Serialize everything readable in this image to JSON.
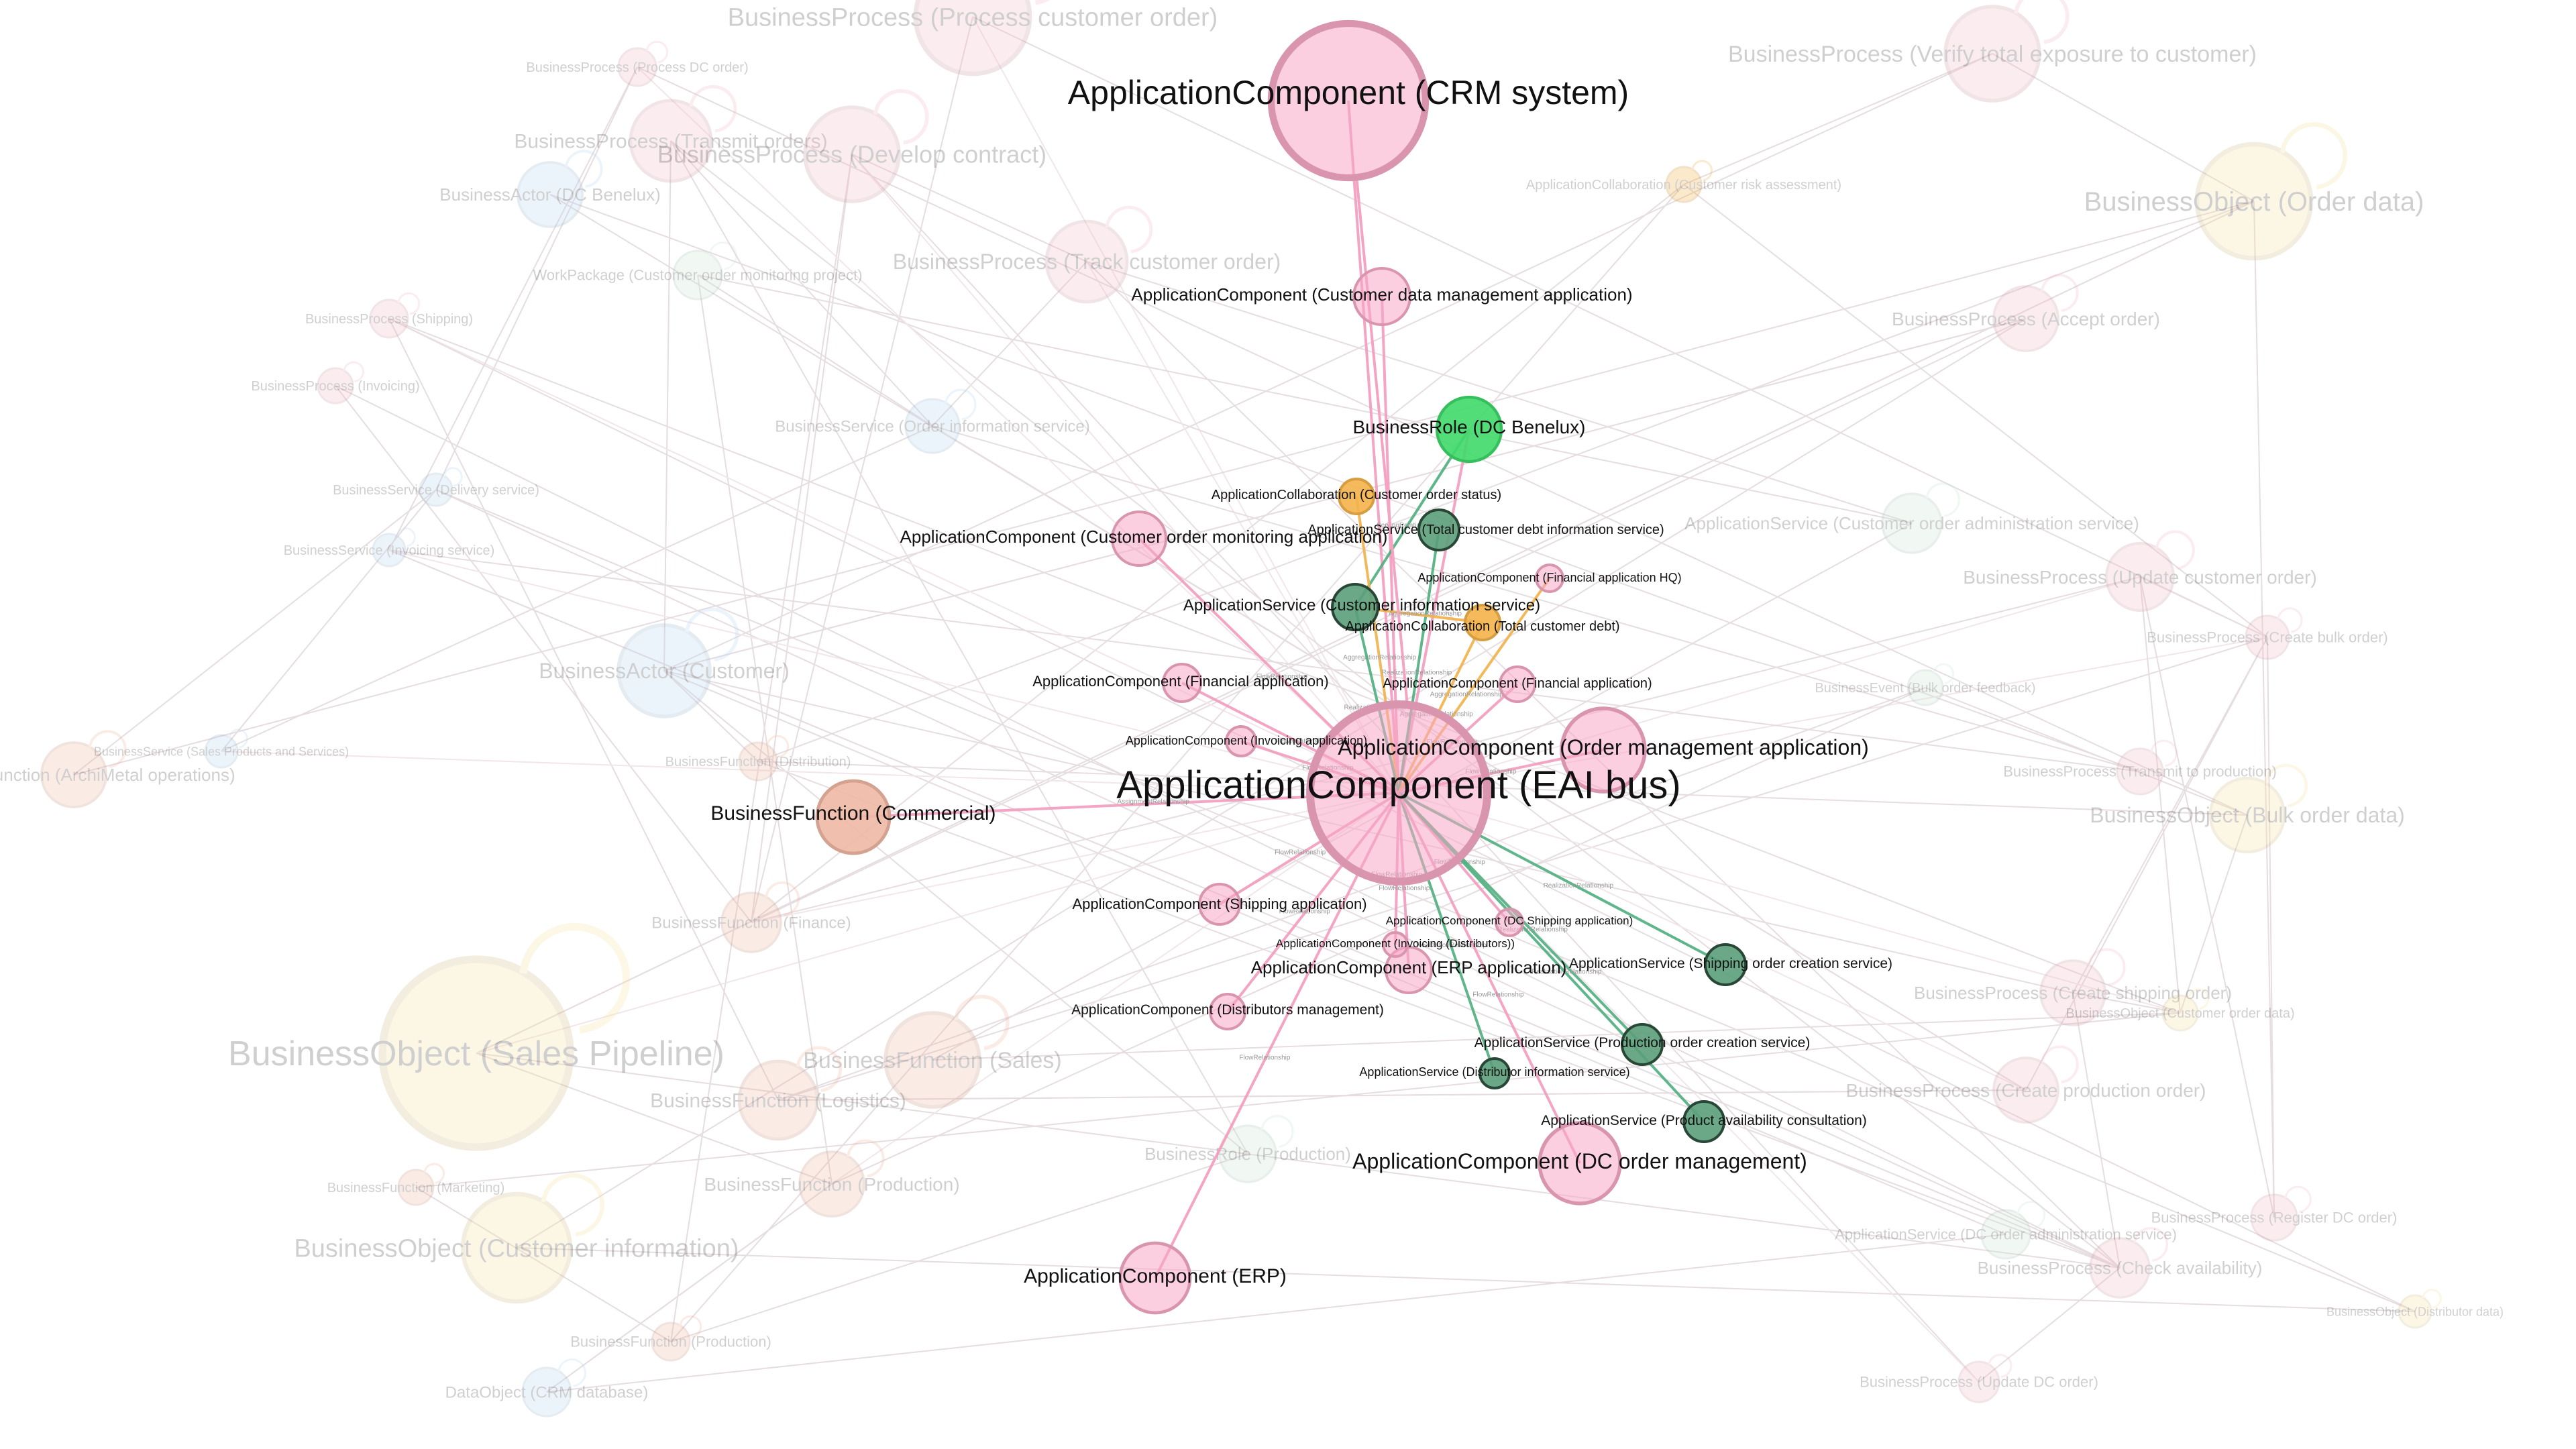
{
  "graph": {
    "colors": {
      "ApplicationComponent": "#f7a8c6",
      "ApplicationService": "#5b9e7a",
      "BusinessRole": "#3fd96a",
      "ApplicationCollaboration": "#f4b24a",
      "BusinessFunction": "#f0b8a4",
      "BusinessProcess": "#f3bcc9",
      "BusinessActor": "#bcd8f2",
      "BusinessObject": "#f7e2a6",
      "BusinessService": "#bcd8f2",
      "Other": "#cfe8d8"
    },
    "focus_nodes": [
      {
        "id": "crm",
        "label": "ApplicationComponent (CRM system)",
        "type": "ApplicationComponent"
      },
      {
        "id": "cdma",
        "label": "ApplicationComponent (Customer data management application)",
        "type": "ApplicationComponent"
      },
      {
        "id": "role_dc",
        "label": "BusinessRole (DC Benelux)",
        "type": "BusinessRole"
      },
      {
        "id": "collab_cos",
        "label": "ApplicationCollaboration (Customer order status)",
        "type": "ApplicationCollaboration"
      },
      {
        "id": "com_app",
        "label": "ApplicationComponent (Customer order monitoring application)",
        "type": "ApplicationComponent"
      },
      {
        "id": "svc_tcd",
        "label": "ApplicationService (Total customer debt information service)",
        "type": "ApplicationService"
      },
      {
        "id": "fa_hq",
        "label": "ApplicationComponent (Financial application HQ)",
        "type": "ApplicationComponent"
      },
      {
        "id": "svc_ci",
        "label": "ApplicationService (Customer information service)",
        "type": "ApplicationService"
      },
      {
        "id": "collab_tcd",
        "label": "ApplicationCollaboration (Total customer debt)",
        "type": "ApplicationCollaboration"
      },
      {
        "id": "fa1",
        "label": "ApplicationComponent (Financial application)",
        "type": "ApplicationComponent"
      },
      {
        "id": "fa2",
        "label": "ApplicationComponent (Financial application)",
        "type": "ApplicationComponent"
      },
      {
        "id": "inv_app",
        "label": "ApplicationComponent (Invoicing application)",
        "type": "ApplicationComponent"
      },
      {
        "id": "oma",
        "label": "ApplicationComponent (Order management application)",
        "type": "ApplicationComponent"
      },
      {
        "id": "eai",
        "label": "ApplicationComponent (EAI bus)",
        "type": "ApplicationComponent"
      },
      {
        "id": "bf_com",
        "label": "BusinessFunction (Commercial)",
        "type": "BusinessFunction"
      },
      {
        "id": "ship_app",
        "label": "ApplicationComponent (Shipping application)",
        "type": "ApplicationComponent"
      },
      {
        "id": "dc_ship",
        "label": "ApplicationComponent (DC Shipping application)",
        "type": "ApplicationComponent"
      },
      {
        "id": "inv_dist",
        "label": "ApplicationComponent (Invoicing (Distributors))",
        "type": "ApplicationComponent"
      },
      {
        "id": "erp_app",
        "label": "ApplicationComponent (ERP application)",
        "type": "ApplicationComponent"
      },
      {
        "id": "svc_soc",
        "label": "ApplicationService (Shipping order creation service)",
        "type": "ApplicationService"
      },
      {
        "id": "dist_mgmt",
        "label": "ApplicationComponent (Distributors management)",
        "type": "ApplicationComponent"
      },
      {
        "id": "svc_poc",
        "label": "ApplicationService (Production order creation service)",
        "type": "ApplicationService"
      },
      {
        "id": "svc_dis",
        "label": "ApplicationService (Distributor information service)",
        "type": "ApplicationService"
      },
      {
        "id": "svc_pac",
        "label": "ApplicationService (Product availability consultation)",
        "type": "ApplicationService"
      },
      {
        "id": "dc_om",
        "label": "ApplicationComponent (DC order management)",
        "type": "ApplicationComponent"
      },
      {
        "id": "erp",
        "label": "ApplicationComponent (ERP)",
        "type": "ApplicationComponent"
      }
    ],
    "edges": [
      {
        "from": "crm",
        "to": "eai",
        "relation": ""
      },
      {
        "from": "cdma",
        "to": "eai",
        "relation": ""
      },
      {
        "from": "role_dc",
        "to": "svc_ci",
        "relation": "ServingRelationship"
      },
      {
        "from": "role_dc",
        "to": "eai",
        "relation": ""
      },
      {
        "from": "collab_cos",
        "to": "eai",
        "relation": "AggregationRelationship"
      },
      {
        "from": "com_app",
        "to": "eai",
        "relation": "FlowRelationship"
      },
      {
        "from": "svc_tcd",
        "to": "eai",
        "relation": "RealizationRelationship"
      },
      {
        "from": "fa_hq",
        "to": "eai",
        "relation": "AggregationRelationship"
      },
      {
        "from": "svc_ci",
        "to": "eai",
        "relation": "RealizationRelationship"
      },
      {
        "from": "collab_tcd",
        "to": "eai",
        "relation": "AggregationRelationship"
      },
      {
        "from": "fa1",
        "to": "eai",
        "relation": "FlowRelationship"
      },
      {
        "from": "fa2",
        "to": "eai",
        "relation": "FlowRelationship"
      },
      {
        "from": "inv_app",
        "to": "eai",
        "relation": "FlowRelationship"
      },
      {
        "from": "oma",
        "to": "eai",
        "relation": "FlowRelationship"
      },
      {
        "from": "bf_com",
        "to": "eai",
        "relation": "AssignmentRelationship"
      },
      {
        "from": "eai",
        "to": "ship_app",
        "relation": "FlowRelationship"
      },
      {
        "from": "eai",
        "to": "dc_ship",
        "relation": "FlowRelationship"
      },
      {
        "from": "eai",
        "to": "inv_dist",
        "relation": "FlowRelationship"
      },
      {
        "from": "eai",
        "to": "erp_app",
        "relation": "FlowRelationship"
      },
      {
        "from": "eai",
        "to": "svc_soc",
        "relation": "RealizationRelationship"
      },
      {
        "from": "eai",
        "to": "dist_mgmt",
        "relation": "FlowRelationship"
      },
      {
        "from": "eai",
        "to": "svc_poc",
        "relation": "RealizationRelationship"
      },
      {
        "from": "eai",
        "to": "svc_dis",
        "relation": "RealizationRelationship"
      },
      {
        "from": "eai",
        "to": "svc_pac",
        "relation": "RealizationRelationship"
      },
      {
        "from": "eai",
        "to": "dc_om",
        "relation": "FlowRelationship"
      },
      {
        "from": "eai",
        "to": "erp",
        "relation": "FlowRelationship"
      },
      {
        "from": "svc_ci",
        "to": "collab_tcd",
        "relation": "AggregationRelationship"
      }
    ],
    "background_nodes": [
      {
        "id": "b1",
        "label": "BusinessProcess (Process customer order)",
        "type": "BusinessProcess"
      },
      {
        "id": "b2",
        "label": "BusinessProcess (Verify total exposure to customer)",
        "type": "BusinessProcess"
      },
      {
        "id": "b3",
        "label": "BusinessProcess (Transmit orders)",
        "type": "BusinessProcess"
      },
      {
        "id": "b4",
        "label": "BusinessProcess (Develop contract)",
        "type": "BusinessProcess"
      },
      {
        "id": "b5",
        "label": "BusinessActor (DC Benelux)",
        "type": "BusinessActor"
      },
      {
        "id": "b6",
        "label": "BusinessObject (Order data)",
        "type": "BusinessObject"
      },
      {
        "id": "b7",
        "label": "BusinessProcess (Track customer order)",
        "type": "BusinessProcess"
      },
      {
        "id": "b8",
        "label": "BusinessProcess (Accept order)",
        "type": "BusinessProcess"
      },
      {
        "id": "b9",
        "label": "ApplicationService (Customer order administration service)",
        "type": "Other"
      },
      {
        "id": "b10",
        "label": "BusinessProcess (Update customer order)",
        "type": "BusinessProcess"
      },
      {
        "id": "b11",
        "label": "BusinessActor (Customer)",
        "type": "BusinessActor"
      },
      {
        "id": "b12",
        "label": "BusinessObject (Bulk order data)",
        "type": "BusinessObject"
      },
      {
        "id": "b13",
        "label": "BusinessObject (Sales Pipeline)",
        "type": "BusinessObject"
      },
      {
        "id": "b14",
        "label": "BusinessFunction (Sales)",
        "type": "BusinessFunction"
      },
      {
        "id": "b15",
        "label": "BusinessFunction (Logistics)",
        "type": "BusinessFunction"
      },
      {
        "id": "b16",
        "label": "BusinessFunction (Production)",
        "type": "BusinessFunction"
      },
      {
        "id": "b17",
        "label": "BusinessObject (Customer information)",
        "type": "BusinessObject"
      },
      {
        "id": "b18",
        "label": "BusinessProcess (Create shipping order)",
        "type": "BusinessProcess"
      },
      {
        "id": "b19",
        "label": "BusinessProcess (Create production order)",
        "type": "BusinessProcess"
      },
      {
        "id": "b20",
        "label": "BusinessProcess (Check availability)",
        "type": "BusinessProcess"
      },
      {
        "id": "b21",
        "label": "DataObject (CRM database)",
        "type": "BusinessActor"
      },
      {
        "id": "b22",
        "label": "BusinessFunction (Finance)",
        "type": "BusinessFunction"
      },
      {
        "id": "b23",
        "label": "BusinessRole (Production)",
        "type": "Other"
      },
      {
        "id": "b24",
        "label": "ApplicationService (DC order administration service)",
        "type": "Other"
      },
      {
        "id": "b25",
        "label": "BusinessProcess (Create bulk order)",
        "type": "BusinessProcess"
      },
      {
        "id": "b26",
        "label": "BusinessProcess (Transmit to production)",
        "type": "BusinessProcess"
      },
      {
        "id": "b27",
        "label": "BusinessProcess (Register DC order)",
        "type": "BusinessProcess"
      },
      {
        "id": "b28",
        "label": "BusinessProcess (Update DC order)",
        "type": "BusinessProcess"
      },
      {
        "id": "b29",
        "label": "BusinessService (Order information service)",
        "type": "BusinessService"
      },
      {
        "id": "b30",
        "label": "WorkPackage (Customer order monitoring project)",
        "type": "Other"
      },
      {
        "id": "b31",
        "label": "BusinessProcess (Shipping)",
        "type": "BusinessProcess"
      },
      {
        "id": "b32",
        "label": "BusinessProcess (Invoicing)",
        "type": "BusinessProcess"
      },
      {
        "id": "b33",
        "label": "BusinessService (Delivery service)",
        "type": "BusinessService"
      },
      {
        "id": "b34",
        "label": "BusinessService (Invoicing service)",
        "type": "BusinessService"
      },
      {
        "id": "b35",
        "label": "BusinessFunction (Distribution)",
        "type": "BusinessFunction"
      },
      {
        "id": "b36",
        "label": "BusinessFunction (ArchiMetal operations)",
        "type": "BusinessFunction"
      },
      {
        "id": "b37",
        "label": "BusinessProcess (Process DC order)",
        "type": "BusinessProcess"
      },
      {
        "id": "b38",
        "label": "BusinessFunction (Marketing)",
        "type": "BusinessFunction"
      },
      {
        "id": "b39",
        "label": "BusinessFunction (Production)",
        "type": "BusinessFunction"
      },
      {
        "id": "b40",
        "label": "BusinessService (Sales Products and Services)",
        "type": "BusinessService"
      },
      {
        "id": "b41",
        "label": "ApplicationCollaboration (Customer risk assessment)",
        "type": "ApplicationCollaboration"
      },
      {
        "id": "b42",
        "label": "BusinessEvent (Bulk order feedback)",
        "type": "Other"
      },
      {
        "id": "b43",
        "label": "BusinessObject (Customer order data)",
        "type": "BusinessObject"
      },
      {
        "id": "b44",
        "label": "BusinessObject (Distributor data)",
        "type": "BusinessObject"
      }
    ]
  }
}
